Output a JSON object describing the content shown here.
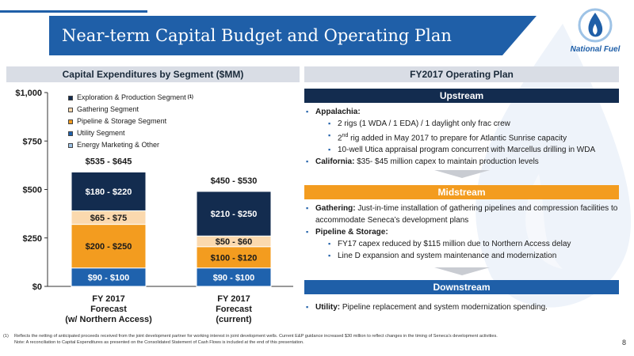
{
  "title": "Near-term Capital Budget and Operating Plan",
  "brand": "National Fuel",
  "colors": {
    "primary_blue": "#1f5fa8",
    "navy": "#132c4f",
    "orange": "#f39c1f",
    "peach": "#fbd9ae",
    "mid_blue": "#1f62ad"
  },
  "left_panel": {
    "header": "Capital Expenditures by Segment ($MM)"
  },
  "right_panel": {
    "header": "FY2017 Operating Plan"
  },
  "legend": {
    "items": [
      {
        "label": "Exploration & Production Segment",
        "note": "(1)",
        "color": "#132c4f"
      },
      {
        "label": "Gathering Segment",
        "color": "#fbd9ae"
      },
      {
        "label": "Pipeline & Storage Segment",
        "color": "#f39c1f"
      },
      {
        "label": "Utility Segment",
        "color": "#1f62ad"
      },
      {
        "label": "Energy Marketing & Other",
        "color": "#9ec3e6"
      }
    ]
  },
  "chart_data": {
    "type": "bar",
    "stacked": true,
    "categories": [
      "FY 2017 Forecast (w/ Northern Access)",
      "FY 2017 Forecast (current)"
    ],
    "category_lines": [
      [
        "FY 2017",
        "Forecast",
        "(w/ Northern Access)"
      ],
      [
        "FY 2017",
        "Forecast",
        "(current)"
      ]
    ],
    "ylim": [
      0,
      1000
    ],
    "yticks": [
      0,
      250,
      500,
      750,
      1000
    ],
    "ytick_labels": [
      "$0",
      "$250",
      "$500",
      "$750",
      "$1,000"
    ],
    "series": [
      {
        "name": "Utility Segment",
        "values": [
          95,
          95
        ],
        "labels": [
          "$90 - $100",
          "$90 - $100"
        ]
      },
      {
        "name": "Pipeline & Storage Segment",
        "values": [
          225,
          110
        ],
        "labels": [
          "$200 - $250",
          "$100 - $120"
        ]
      },
      {
        "name": "Gathering Segment",
        "values": [
          70,
          55
        ],
        "labels": [
          "$65 - $75",
          "$50 - $60"
        ]
      },
      {
        "name": "Exploration & Production Segment",
        "values": [
          200,
          230
        ],
        "labels": [
          "$180 - $220",
          "$210 - $250"
        ]
      }
    ],
    "totals": [
      "$535 - $645",
      "$450 - $530"
    ],
    "grid": false,
    "legend_position": "top-left"
  },
  "upstream": {
    "header": "Upstream",
    "appalachia_label": "Appalachia:",
    "appalachia_items": [
      {
        "pre": "2 rigs (1 WDA / 1 EDA) / 1 daylight only frac crew",
        "sup": "",
        "post": ""
      },
      {
        "pre": "2",
        "sup": "nd",
        "post": " rig added in May 2017 to prepare for Atlantic Sunrise capacity"
      },
      {
        "pre": "10-well Utica appraisal program concurrent with Marcellus drilling in WDA",
        "sup": "",
        "post": ""
      }
    ],
    "california_label": "California:",
    "california_text": " $35- $45 million capex to maintain production levels"
  },
  "midstream": {
    "header": "Midstream",
    "gathering_label": "Gathering:",
    "gathering_text": " Just-in-time installation of gathering pipelines and compression facilities to accommodate Seneca’s development plans",
    "pipeline_label": "Pipeline & Storage:",
    "pipeline_items": [
      "FY17 capex reduced by $115 million due to Northern Access delay",
      "Line D expansion and system maintenance and modernization"
    ]
  },
  "downstream": {
    "header": "Downstream",
    "utility_label": "Utility:",
    "utility_text": " Pipeline replacement and system modernization spending."
  },
  "footnotes": [
    {
      "num": "(1)",
      "text": "Reflects the netting of anticipated proceeds received from the joint development partner for working interest in joint development wells. Current E&P guidance increased $30 million to reflect changes in the timing of Seneca’s development activities."
    },
    {
      "num": "",
      "text": "Note: A reconciliation to Capital Expenditures as presented on the Consolidated Statement of Cash Flows is included at the end of this presentation."
    }
  ],
  "page_number": "8"
}
